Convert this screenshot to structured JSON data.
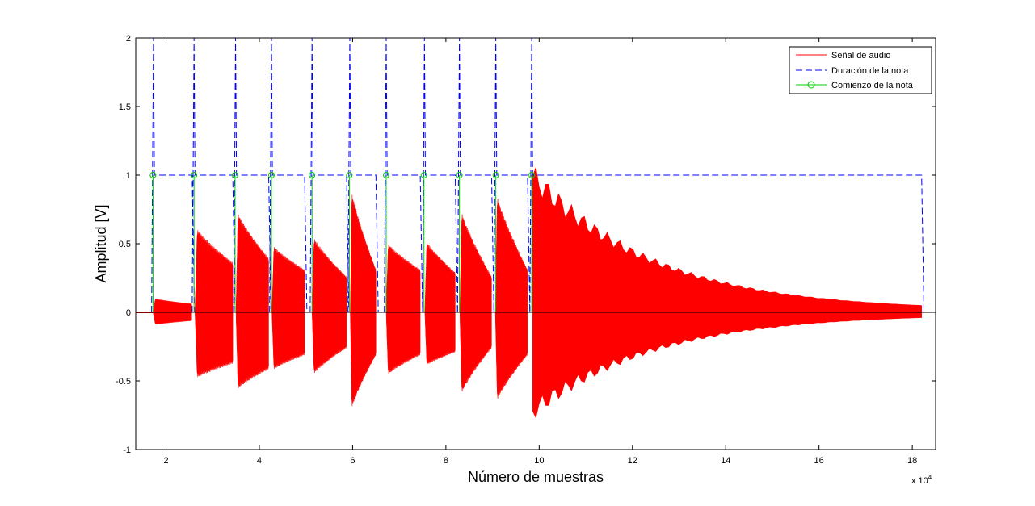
{
  "chart_data": {
    "type": "line",
    "xlabel": "Número de muestras",
    "ylabel": "Amplitud [V]",
    "x_multiplier": "x 10",
    "x_multiplier_exp": "4",
    "xlim": [
      1.35,
      18.5
    ],
    "ylim": [
      -1,
      2
    ],
    "xticks": [
      2,
      4,
      6,
      8,
      10,
      12,
      14,
      16,
      18
    ],
    "yticks": [
      -1,
      -0.5,
      0,
      0.5,
      1,
      1.5,
      2
    ],
    "ytick_labels": [
      "-1",
      "-0.5",
      "0",
      "0.5",
      "1",
      "1.5",
      "2"
    ],
    "grid": false,
    "legend_position": "top-right",
    "series": [
      {
        "name": "Señal de audio",
        "color": "#ff0000",
        "envelope": [
          {
            "start": 1.72,
            "end": 2.55,
            "peak_pos": 0.1,
            "peak_neg": -0.09,
            "final_pos": 0.06,
            "final_neg": -0.06
          },
          {
            "start": 2.62,
            "end": 3.43,
            "peak_pos": 0.61,
            "peak_neg": -0.47,
            "final_pos": 0.35,
            "final_neg": -0.36
          },
          {
            "start": 3.5,
            "end": 4.2,
            "peak_pos": 0.73,
            "peak_neg": -0.55,
            "final_pos": 0.38,
            "final_neg": -0.4
          },
          {
            "start": 4.27,
            "end": 4.97,
            "peak_pos": 0.48,
            "peak_neg": -0.41,
            "final_pos": 0.3,
            "final_neg": -0.3
          },
          {
            "start": 5.13,
            "end": 5.87,
            "peak_pos": 0.55,
            "peak_neg": -0.45,
            "final_pos": 0.25,
            "final_neg": -0.25
          },
          {
            "start": 5.95,
            "end": 6.5,
            "peak_pos": 0.9,
            "peak_neg": -0.71,
            "final_pos": 0.3,
            "final_neg": -0.3
          },
          {
            "start": 6.72,
            "end": 7.45,
            "peak_pos": 0.5,
            "peak_neg": -0.45,
            "final_pos": 0.3,
            "final_neg": -0.3
          },
          {
            "start": 7.55,
            "end": 8.2,
            "peak_pos": 0.52,
            "peak_neg": -0.38,
            "final_pos": 0.28,
            "final_neg": -0.28
          },
          {
            "start": 8.3,
            "end": 8.98,
            "peak_pos": 0.75,
            "peak_neg": -0.6,
            "final_pos": 0.25,
            "final_neg": -0.25
          },
          {
            "start": 9.06,
            "end": 9.75,
            "peak_pos": 0.87,
            "peak_neg": -0.65,
            "final_pos": 0.3,
            "final_neg": -0.3
          },
          {
            "start": 9.86,
            "end": 18.2,
            "peak_pos": 0.99,
            "peak_neg": -0.72,
            "final_pos": 0.01,
            "final_neg": -0.01
          }
        ]
      },
      {
        "name": "Duración de la nota",
        "color": "#0000ff",
        "style": "dashed",
        "segments": [
          {
            "start": 1.75,
            "end": 2.56
          },
          {
            "start": 2.62,
            "end": 3.43
          },
          {
            "start": 3.51,
            "end": 4.2
          },
          {
            "start": 4.28,
            "end": 4.97
          },
          {
            "start": 5.15,
            "end": 5.87
          },
          {
            "start": 5.96,
            "end": 6.5
          },
          {
            "start": 6.74,
            "end": 7.45
          },
          {
            "start": 7.56,
            "end": 8.2
          },
          {
            "start": 8.31,
            "end": 8.98
          },
          {
            "start": 9.09,
            "end": 9.75
          },
          {
            "start": 9.86,
            "end": 18.2
          }
        ],
        "spike_top": 2.0
      },
      {
        "name": "Comienzo de la nota",
        "color": "#00cc00",
        "marker": "circle",
        "onsets": [
          1.72,
          2.6,
          3.48,
          4.26,
          5.13,
          5.93,
          6.72,
          7.53,
          8.29,
          9.07,
          9.84
        ],
        "value": 1
      }
    ]
  }
}
